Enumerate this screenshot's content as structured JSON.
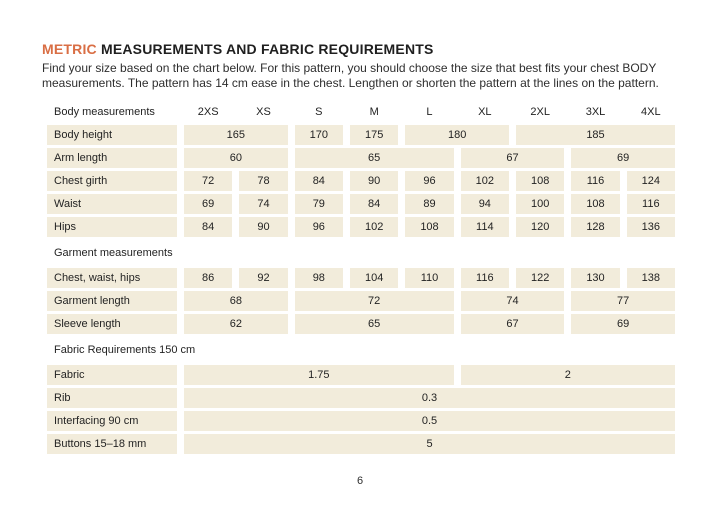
{
  "page": {
    "title_highlight": "METRIC",
    "title_rest": " MEASUREMENTS AND FABRIC REQUIREMENTS",
    "intro_line1": "Find your size based on the chart below. For this pattern, you should choose the size that best fits your chest BODY",
    "intro_line2": "measurements. The pattern has 14 cm ease in the chest. Lengthen or shorten the pattern at the lines on the pattern.",
    "page_number": "6"
  },
  "colors": {
    "accent_orange": "#d96e44",
    "cell_beige": "#f2ecdb",
    "text_dark": "#232323"
  },
  "size_table": {
    "header": {
      "label": "Body measurements",
      "sizes": [
        "2XS",
        "XS",
        "S",
        "M",
        "L",
        "XL",
        "2XL",
        "3XL",
        "4XL"
      ]
    },
    "body_rows": [
      {
        "label": "Body height",
        "cells": [
          [
            "165",
            2
          ],
          [
            "170",
            1
          ],
          [
            "175",
            1
          ],
          [
            "180",
            2
          ],
          [
            "185",
            3
          ]
        ]
      },
      {
        "label": "Arm length",
        "cells": [
          [
            "60",
            2
          ],
          [
            "65",
            3
          ],
          [
            "67",
            2
          ],
          [
            "69",
            2
          ]
        ]
      },
      {
        "label": "Chest girth",
        "cells": [
          [
            "72",
            1
          ],
          [
            "78",
            1
          ],
          [
            "84",
            1
          ],
          [
            "90",
            1
          ],
          [
            "96",
            1
          ],
          [
            "102",
            1
          ],
          [
            "108",
            1
          ],
          [
            "116",
            1
          ],
          [
            "124",
            1
          ]
        ]
      },
      {
        "label": "Waist",
        "cells": [
          [
            "69",
            1
          ],
          [
            "74",
            1
          ],
          [
            "79",
            1
          ],
          [
            "84",
            1
          ],
          [
            "89",
            1
          ],
          [
            "94",
            1
          ],
          [
            "100",
            1
          ],
          [
            "108",
            1
          ],
          [
            "116",
            1
          ]
        ]
      },
      {
        "label": "Hips",
        "cells": [
          [
            "84",
            1
          ],
          [
            "90",
            1
          ],
          [
            "96",
            1
          ],
          [
            "102",
            1
          ],
          [
            "108",
            1
          ],
          [
            "114",
            1
          ],
          [
            "120",
            1
          ],
          [
            "128",
            1
          ],
          [
            "136",
            1
          ]
        ]
      }
    ],
    "garment_section_label": "Garment measurements",
    "garment_rows": [
      {
        "label": "Chest, waist, hips",
        "cells": [
          [
            "86",
            1
          ],
          [
            "92",
            1
          ],
          [
            "98",
            1
          ],
          [
            "104",
            1
          ],
          [
            "110",
            1
          ],
          [
            "116",
            1
          ],
          [
            "122",
            1
          ],
          [
            "130",
            1
          ],
          [
            "138",
            1
          ]
        ]
      },
      {
        "label": "Garment length",
        "cells": [
          [
            "68",
            2
          ],
          [
            "72",
            3
          ],
          [
            "74",
            2
          ],
          [
            "77",
            2
          ]
        ]
      },
      {
        "label": "Sleeve length",
        "cells": [
          [
            "62",
            2
          ],
          [
            "65",
            3
          ],
          [
            "67",
            2
          ],
          [
            "69",
            2
          ]
        ]
      }
    ],
    "fabric_section_label": "Fabric Requirements 150 cm",
    "fabric_rows": [
      {
        "label": "Fabric",
        "cells": [
          [
            "1.75",
            5
          ],
          [
            "2",
            4
          ]
        ]
      },
      {
        "label": "Rib",
        "cells": [
          [
            "0.3",
            9
          ]
        ]
      },
      {
        "label": "Interfacing 90 cm",
        "cells": [
          [
            "0.5",
            9
          ]
        ]
      },
      {
        "label": "Buttons 15–18 mm",
        "cells": [
          [
            "5",
            9
          ]
        ]
      }
    ]
  }
}
